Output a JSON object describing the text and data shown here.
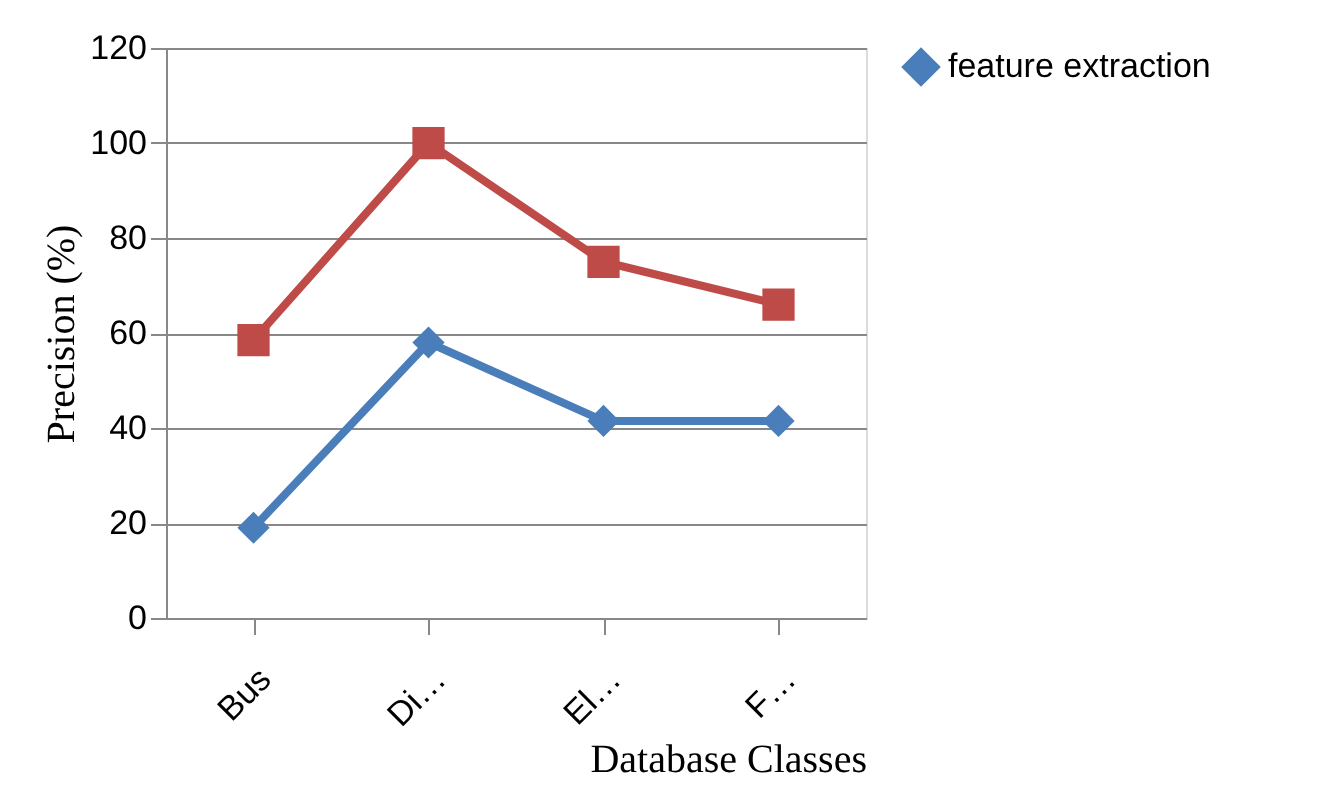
{
  "chart_data": {
    "type": "line",
    "xlabel": "Database Classes",
    "ylabel": "Precision (%)",
    "categories": [
      "Bus",
      "Di…",
      "El…",
      "F…"
    ],
    "series": [
      {
        "name": "feature extraction",
        "color": "#4a7ebb",
        "marker": "diamond",
        "values": [
          19,
          58,
          41.5,
          41.5
        ]
      },
      {
        "color": "#be4b48",
        "marker": "square",
        "values": [
          58.5,
          100,
          75,
          66
        ]
      }
    ],
    "ylim": [
      0,
      120
    ],
    "yticks": [
      0,
      20,
      40,
      60,
      80,
      100,
      120
    ],
    "grid": "y",
    "legend": "top right"
  }
}
